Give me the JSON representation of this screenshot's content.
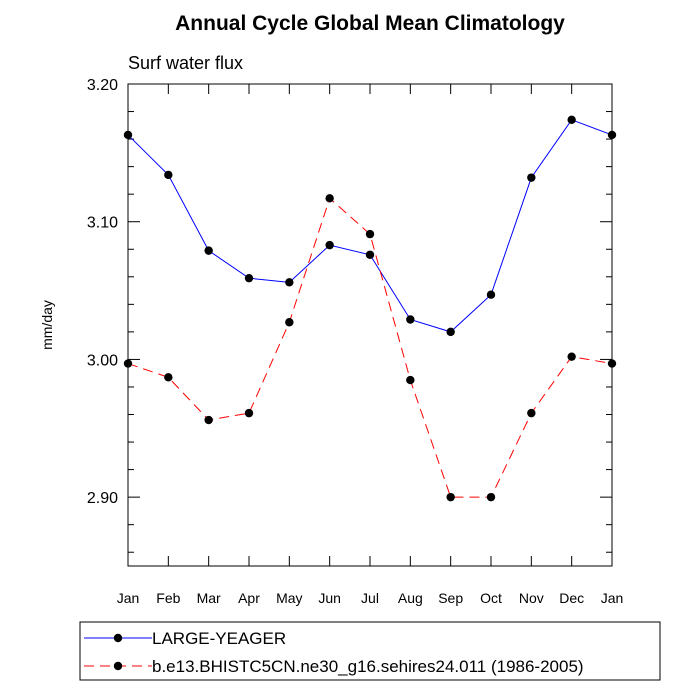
{
  "chart_data": {
    "type": "line",
    "title": "Annual Cycle Global Mean Climatology",
    "subtitle": "Surf water flux",
    "xlabel": "",
    "ylabel": "mm/day",
    "ylim": [
      2.85,
      3.2
    ],
    "yticks": [
      2.9,
      3.0,
      3.1,
      3.2
    ],
    "ytick_labels": [
      "2.90",
      "3.00",
      "3.10",
      "3.20"
    ],
    "categories": [
      "Jan",
      "Feb",
      "Mar",
      "Apr",
      "May",
      "Jun",
      "Jul",
      "Aug",
      "Sep",
      "Oct",
      "Nov",
      "Dec",
      "Jan"
    ],
    "grid": false,
    "legend_position": "bottom",
    "series": [
      {
        "name": "LARGE-YEAGER",
        "color": "#0000ff",
        "dash": "solid",
        "marker": "filled-circle",
        "values": [
          3.163,
          3.134,
          3.079,
          3.059,
          3.056,
          3.083,
          3.076,
          3.029,
          3.02,
          3.047,
          3.132,
          3.174,
          3.163
        ]
      },
      {
        "name": "b.e13.BHISTC5CN.ne30_g16.sehires24.011 (1986-2005)",
        "color": "#ff0000",
        "dash": "dashed",
        "marker": "filled-circle",
        "values": [
          2.997,
          2.987,
          2.956,
          2.961,
          3.027,
          3.117,
          3.091,
          2.985,
          2.9,
          2.9,
          2.961,
          3.002,
          2.997
        ]
      }
    ]
  }
}
